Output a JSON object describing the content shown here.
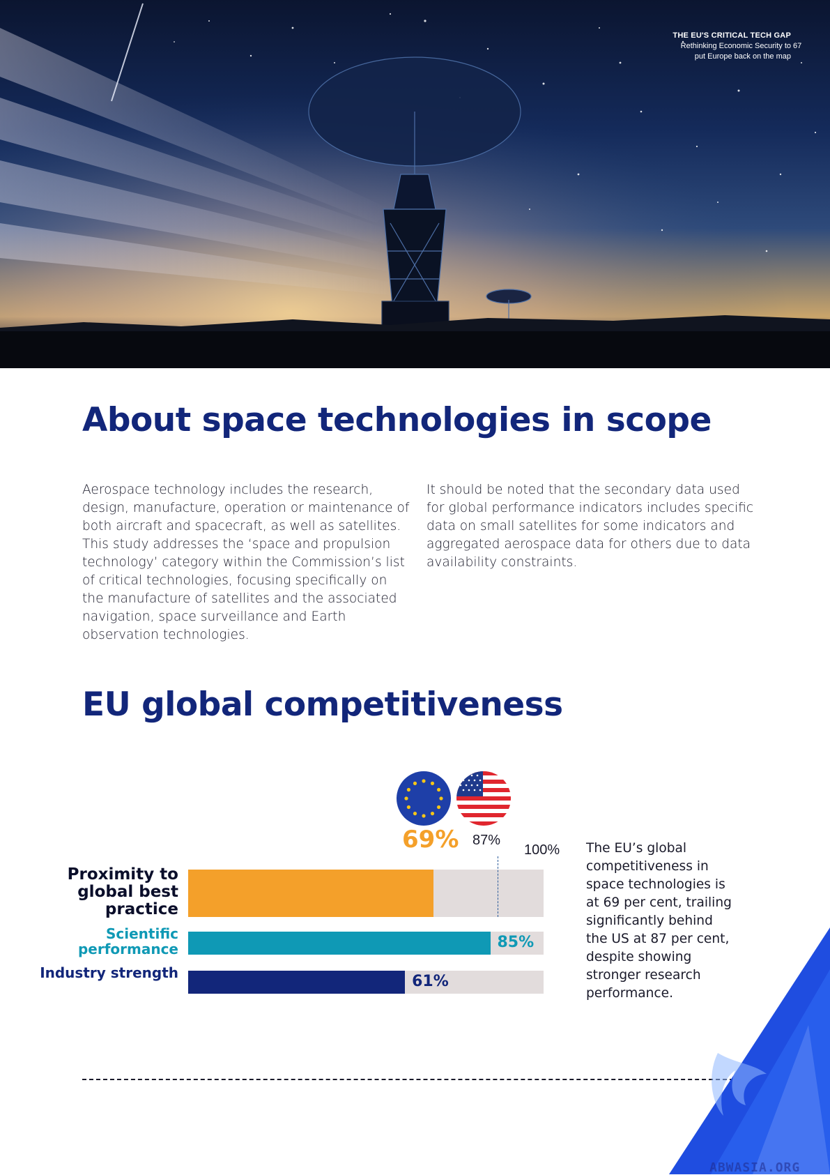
{
  "header": {
    "report_title": "THE EU'S CRITICAL TECH GAP",
    "report_subtitle_line1": "Rethinking Economic Security to",
    "report_subtitle_line2": "put Europe back on the map",
    "page_number": "67"
  },
  "about": {
    "heading": "About space technologies in scope",
    "left_paragraph": "Aerospace technology includes the research, design, manufacture, operation or maintenance of both aircraft and spacecraft, as well as satellites. This study addresses the ‘space and propulsion technology’ category within the Commission’s list of critical technologies, focusing specifically on the manufacture of satellites and the associated navigation, space surveillance and Earth observation technologies.",
    "right_paragraph": "It should be noted that the secondary data used for global performance indicators includes specific data on small satellites for some indicators and aggregated aerospace data for others due to data availability constraints."
  },
  "competitiveness": {
    "heading": "EU global competitiveness",
    "side_note": "The EU’s global competitiveness in space technologies is at 69 per cent, trailing significantly behind the US at 87 per cent, despite showing stronger research performance.",
    "flag_icons": [
      "eu-flag-icon",
      "us-flag-icon"
    ]
  },
  "chart_data": {
    "type": "bar",
    "orientation": "horizontal",
    "xlim": [
      0,
      100
    ],
    "unit": "%",
    "max_label": "100%",
    "categories": [
      "Proximity to global best practice",
      "Scientific performance",
      "Industry strength"
    ],
    "bars": [
      {
        "key": "proximity",
        "label": "Proximity to global best practice",
        "value": 69,
        "value_label": "69%",
        "color": "#f4a02a"
      },
      {
        "key": "scientific",
        "label": "Scientific performance",
        "value": 85,
        "value_label": "85%",
        "color": "#0f99b5"
      },
      {
        "key": "industry",
        "label": "Industry strength",
        "value": 61,
        "value_label": "61%",
        "color": "#12267a"
      }
    ],
    "benchmark": {
      "name": "US",
      "value": 87,
      "label": "87%"
    },
    "eu_value_label": "69%"
  },
  "watermark": "ABWASIA.ORG",
  "colors": {
    "heading": "#12267a",
    "accent_orange": "#f4a02a",
    "accent_teal": "#0f99b5",
    "navy": "#12267a",
    "track": "#e2dcdc"
  }
}
